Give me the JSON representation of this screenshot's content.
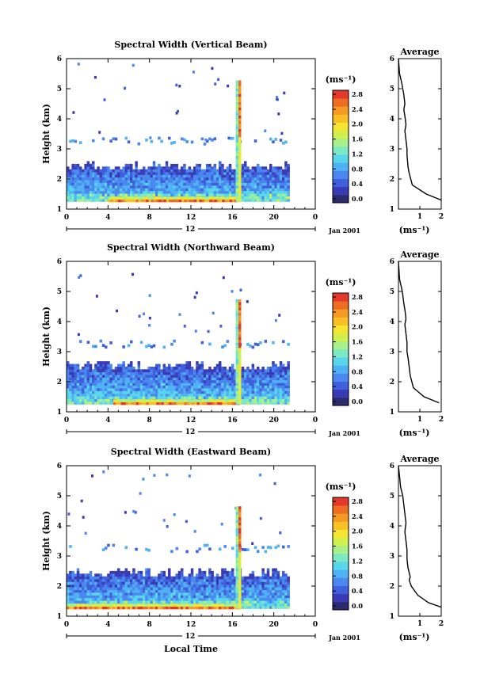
{
  "common": {
    "date_label": "Jan 2001",
    "day_label": "12",
    "xlabel_bottom": "Local Time",
    "ylabel": "Height (km)",
    "colorbar_unit": "(ms⁻¹)",
    "avg_title": "Average",
    "avg_unit": "(ms⁻¹)"
  },
  "colorscale": [
    "#2a2a6e",
    "#3a3ab5",
    "#3f5fdc",
    "#4a88f0",
    "#4fb2f5",
    "#5ad6ea",
    "#7de8c6",
    "#a7f08a",
    "#d2f04d",
    "#f5e531",
    "#f8c026",
    "#f59a22",
    "#ee6d22",
    "#e2392a"
  ],
  "chart_data": [
    {
      "type": "heatmap",
      "title": "Spectral Width (Vertical Beam)",
      "xlabel": "",
      "ylabel": "Height (km)",
      "xlim": [
        0,
        24
      ],
      "ylim": [
        1,
        6
      ],
      "xticks": [
        "0",
        "4",
        "8",
        "12",
        "16",
        "20",
        "0"
      ],
      "yticks": [
        "1",
        "2",
        "3",
        "4",
        "5",
        "6"
      ],
      "colorbar": {
        "label": "(ms⁻¹)",
        "range": [
          0,
          2.8
        ],
        "ticks": [
          "0.0",
          "0.4",
          "0.8",
          "1.2",
          "1.6",
          "2.0",
          "2.4",
          "2.8"
        ]
      },
      "data_extent": {
        "x": [
          0,
          21.5
        ],
        "dense_top_km": 2.5,
        "scatter_top_km": 3.3
      },
      "spike": {
        "x": 16.7,
        "top_km": 5.3,
        "low_band_x": [
          4,
          16.7
        ]
      }
    },
    {
      "type": "line",
      "title": "Average",
      "xlabel": "(ms⁻¹)",
      "ylabel": "",
      "xlim": [
        0,
        2
      ],
      "ylim": [
        1,
        6
      ],
      "xticks": [
        "1",
        "2"
      ],
      "yticks": [
        "1",
        "2",
        "3",
        "4",
        "5",
        "6"
      ],
      "x": [
        2.0,
        1.3,
        0.65,
        0.5,
        0.45,
        0.4,
        0.4,
        0.35,
        0.3,
        0.35,
        0.3,
        0.25,
        0.3,
        0.25,
        0.2,
        0.15,
        0.05,
        0.0
      ],
      "y": [
        1.3,
        1.5,
        1.8,
        2.2,
        2.4,
        2.8,
        3.0,
        3.3,
        3.6,
        3.8,
        4.1,
        4.3,
        4.5,
        4.8,
        5.0,
        5.2,
        5.5,
        6.0
      ]
    },
    {
      "type": "heatmap",
      "title": "Spectral Width (Northward Beam)",
      "xlabel": "",
      "ylabel": "Height (km)",
      "xlim": [
        0,
        24
      ],
      "ylim": [
        1,
        6
      ],
      "xticks": [
        "0",
        "4",
        "8",
        "12",
        "16",
        "20",
        "0"
      ],
      "yticks": [
        "1",
        "2",
        "3",
        "4",
        "5",
        "6"
      ],
      "colorbar": {
        "label": "(ms⁻¹)",
        "range": [
          0,
          2.8
        ],
        "ticks": [
          "0.0",
          "0.4",
          "0.8",
          "1.2",
          "1.6",
          "2.0",
          "2.4",
          "2.8"
        ]
      },
      "data_extent": {
        "x": [
          0,
          21.5
        ],
        "dense_top_km": 2.6,
        "scatter_top_km": 3.3
      },
      "spike": {
        "x": 16.7,
        "top_km": 4.8,
        "low_band_x": [
          4.5,
          16.7
        ]
      }
    },
    {
      "type": "line",
      "title": "Average",
      "xlabel": "(ms⁻¹)",
      "ylabel": "",
      "xlim": [
        0,
        2
      ],
      "ylim": [
        1,
        6
      ],
      "xticks": [
        "1",
        "2"
      ],
      "yticks": [
        "1",
        "2",
        "3",
        "4",
        "5",
        "6"
      ],
      "x": [
        1.9,
        1.2,
        0.7,
        0.55,
        0.5,
        0.45,
        0.4,
        0.4,
        0.35,
        0.3,
        0.35,
        0.3,
        0.25,
        0.2,
        0.15,
        0.05,
        0.0
      ],
      "y": [
        1.3,
        1.5,
        1.8,
        2.2,
        2.5,
        2.8,
        3.0,
        3.3,
        3.6,
        3.9,
        4.1,
        4.4,
        4.6,
        4.9,
        5.1,
        5.4,
        6.0
      ]
    },
    {
      "type": "heatmap",
      "title": "Spectral Width (Eastward Beam)",
      "xlabel": "Local Time",
      "ylabel": "Height (km)",
      "xlim": [
        0,
        24
      ],
      "ylim": [
        1,
        6
      ],
      "xticks": [
        "0",
        "4",
        "8",
        "12",
        "16",
        "20",
        "0"
      ],
      "yticks": [
        "1",
        "2",
        "3",
        "4",
        "5",
        "6"
      ],
      "colorbar": {
        "label": "(ms⁻¹)",
        "range": [
          0,
          2.8
        ],
        "ticks": [
          "0.0",
          "0.4",
          "0.8",
          "1.2",
          "1.6",
          "2.0",
          "2.4",
          "2.8"
        ]
      },
      "data_extent": {
        "x": [
          0,
          21.5
        ],
        "dense_top_km": 2.5,
        "scatter_top_km": 3.3
      },
      "spike": {
        "x": 16.7,
        "top_km": 4.7,
        "low_band_x": [
          0,
          16.7
        ]
      }
    },
    {
      "type": "line",
      "title": "Average",
      "xlabel": "(ms⁻¹)",
      "ylabel": "",
      "xlim": [
        0,
        2
      ],
      "ylim": [
        1,
        6
      ],
      "xticks": [
        "1",
        "2"
      ],
      "yticks": [
        "1",
        "2",
        "3",
        "4",
        "5",
        "6"
      ],
      "x": [
        2.0,
        1.4,
        0.9,
        0.6,
        0.5,
        0.55,
        0.45,
        0.4,
        0.4,
        0.35,
        0.3,
        0.35,
        0.3,
        0.25,
        0.2,
        0.1,
        0.0
      ],
      "y": [
        1.3,
        1.45,
        1.7,
        2.0,
        2.2,
        2.3,
        2.6,
        2.9,
        3.2,
        3.5,
        3.8,
        4.1,
        4.4,
        4.7,
        5.0,
        5.3,
        6.0
      ]
    }
  ]
}
